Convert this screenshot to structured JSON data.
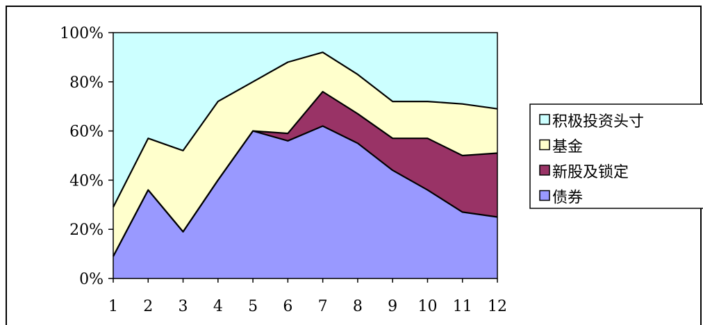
{
  "chart_data": {
    "type": "area",
    "stacked": true,
    "percent": true,
    "x": [
      "1",
      "2",
      "3",
      "4",
      "5",
      "6",
      "7",
      "8",
      "9",
      "10",
      "11",
      "12"
    ],
    "ylim": [
      0,
      100
    ],
    "yticks": [
      "0%",
      "20%",
      "40%",
      "60%",
      "80%",
      "100%"
    ],
    "grid": false,
    "legend_position": "right",
    "series": [
      {
        "name": "债券",
        "color": "#9999ff",
        "values": [
          9,
          36,
          19,
          40,
          60,
          56,
          62,
          55,
          44,
          36,
          27,
          25
        ]
      },
      {
        "name": "新股及锁定",
        "color": "#993366",
        "values": [
          0,
          0,
          0,
          0,
          0,
          3,
          14,
          12,
          13,
          21,
          23,
          26
        ]
      },
      {
        "name": "基金",
        "color": "#ffffcc",
        "values": [
          20,
          21,
          33,
          32,
          20,
          29,
          16,
          16,
          15,
          15,
          21,
          18
        ]
      },
      {
        "name": "积极投资头寸",
        "color": "#ccffff",
        "values": [
          71,
          43,
          48,
          28,
          20,
          12,
          8,
          17,
          28,
          28,
          29,
          31
        ]
      }
    ],
    "legend_order": [
      "积极投资头寸",
      "基金",
      "新股及锁定",
      "债券"
    ]
  }
}
